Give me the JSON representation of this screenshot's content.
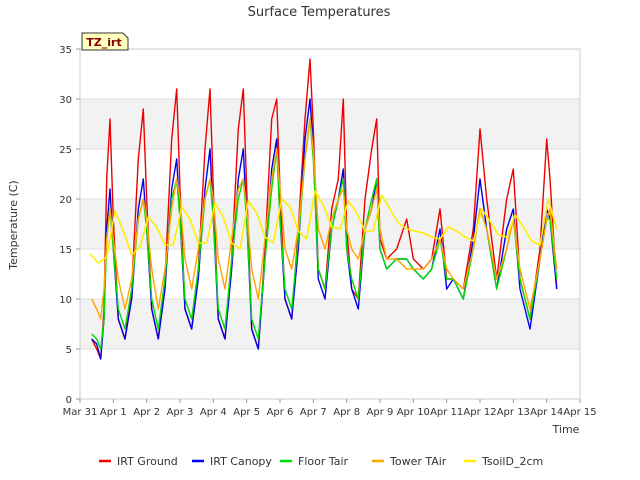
{
  "chart_data": {
    "type": "line",
    "title": "Surface Temperatures",
    "badge": "TZ_irt",
    "xlabel": "Time",
    "ylabel": "Temperature (C)",
    "ylim": [
      0,
      35
    ],
    "xlim": [
      0,
      15
    ],
    "yticks": [
      0,
      5,
      10,
      15,
      20,
      25,
      30,
      35
    ],
    "xticks": [
      {
        "day": 0,
        "label": "Mar 31"
      },
      {
        "day": 1,
        "label": "Apr 1"
      },
      {
        "day": 2,
        "label": "Apr 2"
      },
      {
        "day": 3,
        "label": "Apr 3"
      },
      {
        "day": 4,
        "label": "Apr 4"
      },
      {
        "day": 5,
        "label": "Apr 5"
      },
      {
        "day": 6,
        "label": "Apr 6"
      },
      {
        "day": 7,
        "label": "Apr 7"
      },
      {
        "day": 8,
        "label": "Apr 8"
      },
      {
        "day": 9,
        "label": "Apr 9"
      },
      {
        "day": 10,
        "label": "Apr 10"
      },
      {
        "day": 11,
        "label": "Apr 11"
      },
      {
        "day": 12,
        "label": "Apr 12"
      },
      {
        "day": 13,
        "label": "Apr 13"
      },
      {
        "day": 14,
        "label": "Apr 14"
      },
      {
        "day": 15,
        "label": "Apr 15"
      }
    ],
    "grid": "horizontal alternating bands",
    "legend_position": "bottom",
    "series": [
      {
        "name": "IRT Ground",
        "color": "#ee0000",
        "x": [
          0.35,
          0.5,
          0.62,
          0.72,
          0.8,
          0.9,
          1.0,
          1.15,
          1.35,
          1.55,
          1.75,
          1.9,
          2.0,
          2.15,
          2.35,
          2.55,
          2.75,
          2.9,
          3.0,
          3.15,
          3.35,
          3.55,
          3.75,
          3.9,
          4.0,
          4.15,
          4.35,
          4.55,
          4.75,
          4.9,
          5.0,
          5.15,
          5.35,
          5.55,
          5.75,
          5.9,
          6.0,
          6.15,
          6.35,
          6.55,
          6.75,
          6.9,
          7.0,
          7.15,
          7.35,
          7.55,
          7.75,
          7.9,
          8.0,
          8.15,
          8.35,
          8.55,
          8.75,
          8.9,
          9.0,
          9.2,
          9.5,
          9.8,
          10.0,
          10.3,
          10.55,
          10.8,
          11.0,
          11.2,
          11.5,
          11.8,
          12.0,
          12.2,
          12.5,
          12.8,
          13.0,
          13.2,
          13.5,
          13.8,
          14.0,
          14.1,
          14.3
        ],
        "y": [
          6,
          5,
          4,
          9,
          22,
          28,
          18,
          8,
          6,
          11,
          24,
          29,
          20,
          9,
          6,
          12,
          26,
          31,
          21,
          9,
          7,
          13,
          25,
          31,
          21,
          8,
          6,
          14,
          27,
          31,
          21,
          7,
          5,
          15,
          28,
          30,
          21,
          10,
          8,
          17,
          28,
          34,
          27,
          13,
          11,
          19,
          22,
          30,
          17,
          11,
          10,
          20,
          25,
          28,
          16,
          14,
          15,
          18,
          14,
          13,
          14,
          19,
          12,
          12,
          11,
          17,
          27,
          20,
          12,
          20,
          23,
          12,
          8,
          15,
          26,
          22,
          11
        ]
      },
      {
        "name": "IRT Canopy",
        "color": "#0000ee",
        "x": [
          0.35,
          0.5,
          0.62,
          0.72,
          0.8,
          0.9,
          1.0,
          1.15,
          1.35,
          1.55,
          1.75,
          1.9,
          2.0,
          2.15,
          2.35,
          2.55,
          2.75,
          2.9,
          3.0,
          3.15,
          3.35,
          3.55,
          3.75,
          3.9,
          4.0,
          4.15,
          4.35,
          4.55,
          4.75,
          4.9,
          5.0,
          5.15,
          5.35,
          5.55,
          5.75,
          5.9,
          6.0,
          6.15,
          6.35,
          6.55,
          6.75,
          6.9,
          7.0,
          7.15,
          7.35,
          7.55,
          7.75,
          7.9,
          8.0,
          8.15,
          8.35,
          8.55,
          8.75,
          8.9,
          9.0,
          9.2,
          9.5,
          9.8,
          10.0,
          10.3,
          10.55,
          10.8,
          11.0,
          11.2,
          11.5,
          11.8,
          12.0,
          12.2,
          12.5,
          12.8,
          13.0,
          13.2,
          13.5,
          13.8,
          14.0,
          14.1,
          14.3
        ],
        "y": [
          6,
          5.5,
          4,
          8,
          17,
          21,
          15,
          8,
          6,
          10,
          19,
          22,
          17,
          9,
          6,
          11,
          21,
          24,
          18,
          9,
          7,
          12,
          21,
          25,
          18,
          8,
          6,
          13,
          22,
          25,
          18,
          7,
          5,
          14,
          23,
          26,
          18,
          10,
          8,
          15,
          26,
          30,
          25,
          12,
          10,
          17,
          20,
          23,
          15,
          11,
          9,
          17,
          19,
          22,
          15,
          13,
          14,
          14,
          13,
          12,
          13,
          17,
          11,
          12,
          10,
          16,
          22,
          17,
          11,
          17,
          19,
          11,
          7,
          14,
          19,
          18,
          11
        ]
      },
      {
        "name": "Floor Tair",
        "color": "#00dd00",
        "x": [
          0.35,
          0.5,
          0.62,
          0.72,
          0.8,
          0.9,
          1.0,
          1.15,
          1.35,
          1.55,
          1.75,
          1.9,
          2.0,
          2.15,
          2.35,
          2.55,
          2.75,
          2.9,
          3.0,
          3.15,
          3.35,
          3.55,
          3.75,
          3.9,
          4.0,
          4.15,
          4.35,
          4.55,
          4.75,
          4.9,
          5.0,
          5.15,
          5.35,
          5.55,
          5.75,
          5.9,
          6.0,
          6.15,
          6.35,
          6.55,
          6.75,
          6.9,
          7.0,
          7.15,
          7.35,
          7.55,
          7.75,
          7.9,
          8.0,
          8.15,
          8.35,
          8.55,
          8.75,
          8.9,
          9.0,
          9.2,
          9.5,
          9.8,
          10.0,
          10.3,
          10.55,
          10.8,
          11.0,
          11.2,
          11.5,
          11.8,
          12.0,
          12.2,
          12.5,
          12.8,
          13.0,
          13.2,
          13.5,
          13.8,
          14.0,
          14.1,
          14.3
        ],
        "y": [
          6.5,
          6,
          5,
          8,
          16,
          19,
          15,
          9,
          7,
          11,
          18,
          20,
          17,
          10,
          7,
          12,
          20,
          22,
          18,
          10,
          8,
          13,
          20,
          22,
          18,
          9,
          7,
          14,
          20,
          22,
          18,
          8,
          6,
          14,
          21,
          25,
          18,
          11,
          9,
          16,
          24,
          28,
          24,
          13,
          11,
          17,
          20,
          22,
          15,
          12,
          10,
          17,
          20,
          22,
          15,
          13,
          14,
          14,
          13,
          12,
          13,
          16,
          12,
          12,
          10,
          15,
          19,
          17,
          11,
          15,
          18,
          12,
          8,
          14,
          18,
          18,
          12
        ]
      },
      {
        "name": "Tower TAir",
        "color": "#ffa500",
        "x": [
          0.35,
          0.5,
          0.62,
          0.72,
          0.8,
          0.9,
          1.0,
          1.15,
          1.35,
          1.55,
          1.75,
          1.9,
          2.0,
          2.15,
          2.35,
          2.55,
          2.75,
          2.9,
          3.0,
          3.15,
          3.35,
          3.55,
          3.75,
          3.9,
          4.0,
          4.15,
          4.35,
          4.55,
          4.75,
          4.9,
          5.0,
          5.15,
          5.35,
          5.55,
          5.75,
          5.9,
          6.0,
          6.15,
          6.35,
          6.55,
          6.75,
          6.9,
          7.0,
          7.15,
          7.35,
          7.55,
          7.75,
          7.9,
          8.0,
          8.15,
          8.35,
          8.55,
          8.75,
          8.9,
          9.0,
          9.2,
          9.5,
          9.8,
          10.0,
          10.3,
          10.55,
          10.8,
          11.0,
          11.2,
          11.5,
          11.8,
          12.0,
          12.2,
          12.5,
          12.8,
          13.0,
          13.2,
          13.5,
          13.8,
          14.0,
          14.1,
          14.3
        ],
        "y": [
          10,
          9,
          8,
          11,
          16,
          19,
          16,
          12,
          9,
          12,
          18,
          20,
          18,
          13,
          9,
          13,
          19,
          22,
          20,
          14,
          11,
          15,
          20,
          22,
          20,
          14,
          11,
          16,
          21,
          22,
          19,
          13,
          10,
          16,
          22,
          25,
          21,
          15,
          13,
          17,
          24,
          28,
          25,
          17,
          15,
          18,
          20,
          21,
          17,
          15,
          14,
          17,
          19,
          21,
          17,
          14,
          14,
          13,
          13,
          13,
          14,
          16,
          13,
          12,
          11,
          15,
          19,
          17,
          12,
          15,
          18,
          13,
          9,
          14,
          18,
          19,
          13
        ]
      },
      {
        "name": "TsoilD_2cm",
        "color": "#ffee00",
        "x": [
          0.3,
          0.55,
          0.8,
          1.05,
          1.3,
          1.55,
          1.8,
          2.05,
          2.3,
          2.55,
          2.8,
          3.05,
          3.3,
          3.55,
          3.8,
          4.05,
          4.3,
          4.55,
          4.8,
          5.05,
          5.3,
          5.55,
          5.8,
          6.05,
          6.3,
          6.55,
          6.8,
          7.05,
          7.3,
          7.55,
          7.8,
          8.05,
          8.3,
          8.55,
          8.8,
          9.05,
          9.3,
          9.55,
          9.8,
          10.05,
          10.3,
          10.55,
          10.8,
          11.05,
          11.3,
          11.55,
          11.8,
          12.05,
          12.3,
          12.55,
          12.8,
          13.05,
          13.3,
          13.55,
          13.8,
          14.05,
          14.3
        ],
        "y": [
          14.5,
          13.6,
          14.2,
          18.8,
          16.8,
          14.4,
          15.2,
          18.2,
          17.2,
          15.4,
          15.4,
          19.2,
          18.0,
          15.6,
          15.6,
          19.6,
          18.2,
          15.6,
          15.0,
          19.8,
          18.6,
          16.2,
          15.6,
          20.0,
          19.2,
          16.8,
          16.0,
          20.8,
          19.4,
          17.2,
          17.0,
          19.8,
          18.6,
          16.8,
          16.8,
          20.4,
          19.0,
          17.6,
          17.0,
          16.8,
          16.6,
          16.2,
          16.0,
          17.2,
          16.8,
          16.2,
          15.8,
          19.0,
          17.8,
          16.4,
          16.2,
          18.4,
          17.2,
          15.8,
          15.4,
          20.0,
          17.0
        ]
      }
    ]
  }
}
